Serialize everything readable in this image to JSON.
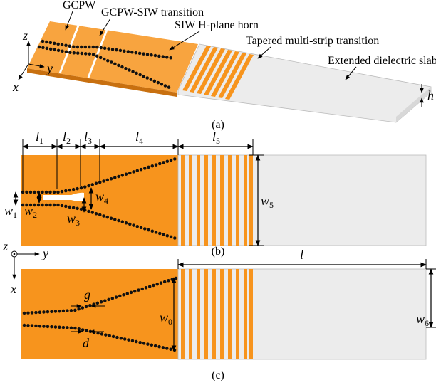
{
  "panel_a": {
    "labels": {
      "gcpw": "GCPW",
      "transition": "GCPW-SIW transition",
      "horn": "SIW H-plane horn",
      "multistrip": "Tapered multi-strip transition",
      "slab": "Extended dielectric slab"
    },
    "axes": {
      "z": "z",
      "y": "y",
      "x": "x"
    },
    "thickness": "h",
    "caption": "(a)"
  },
  "panel_b": {
    "dims": [
      {
        "symbol": "l",
        "sub": "1"
      },
      {
        "symbol": "l",
        "sub": "2"
      },
      {
        "symbol": "l",
        "sub": "3"
      },
      {
        "symbol": "l",
        "sub": "4"
      },
      {
        "symbol": "l",
        "sub": "5"
      },
      {
        "symbol": "w",
        "sub": "1"
      },
      {
        "symbol": "w",
        "sub": "2"
      },
      {
        "symbol": "w",
        "sub": "3"
      },
      {
        "symbol": "w",
        "sub": "4"
      },
      {
        "symbol": "w",
        "sub": "5"
      }
    ],
    "caption": "(b)"
  },
  "panel_c": {
    "axes": {
      "z": "z",
      "y": "y",
      "x": "x"
    },
    "length": "l",
    "gap": "g",
    "diameter": "d",
    "dims": [
      {
        "symbol": "w",
        "sub": "0"
      },
      {
        "symbol": "w",
        "sub": "6"
      }
    ],
    "caption": "(c)"
  }
}
